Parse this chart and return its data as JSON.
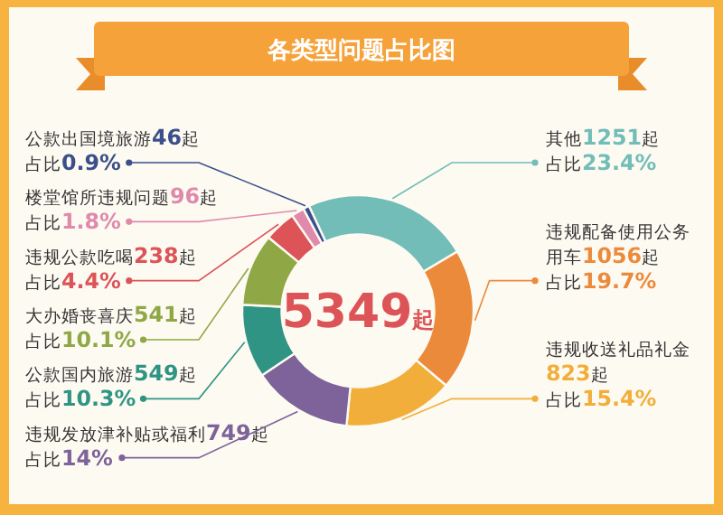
{
  "chart_data": {
    "type": "donut",
    "title": "各类型问题占比图",
    "categories": [
      "其他",
      "违规配备使用公务用车",
      "违规收送礼品礼金",
      "违规发放津补贴或福利",
      "公款国内旅游",
      "大办婚丧喜庆",
      "违规公款吃喝",
      "楼堂馆所违规问题",
      "公款出国境旅游"
    ],
    "values": [
      1251,
      1056,
      823,
      749,
      549,
      541,
      238,
      96,
      46
    ],
    "colors": [
      "#72bdb8",
      "#ec8a3c",
      "#f2ae3a",
      "#7d6399",
      "#2f9483",
      "#8fa845",
      "#dc5457",
      "#e08aab",
      "#3b4f8a"
    ],
    "value_labels": [
      "1251起占比23.4%",
      "1056起占比19.7%",
      "823起占比15.4%",
      "749起占比14%",
      "549起占比10.3%",
      "541起占比10.1%",
      "238起占比4.4%",
      "96起占比1.8%",
      "46起占比0.9%"
    ],
    "annotations": [
      "5349起"
    ]
  }
}
